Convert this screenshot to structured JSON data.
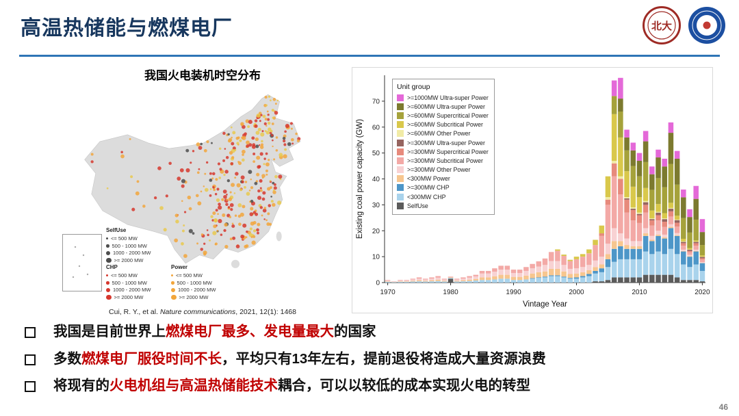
{
  "slide": {
    "title": "高温热储能与燃煤电厂",
    "page_number": "46",
    "accent_color": "#17375E",
    "underline_color": "#2E75B6",
    "highlight_color": "#C00000"
  },
  "logos": {
    "left_name": "peking-university-seal",
    "right_name": "hust-emblem"
  },
  "map_panel": {
    "title": "我国火电装机时空分布",
    "citation_prefix": "Cui, R. Y., et al. ",
    "citation_journal": "Nature communications",
    "citation_suffix": ", 2021, 12(1): 1468",
    "legend": {
      "selfuse_label": "SelfUse",
      "chp_label": "CHP",
      "power_label": "Power",
      "size_labels": [
        "<= 500 MW",
        "500 - 1000 MW",
        "1000 - 2000 MW",
        ">= 2000 MW"
      ],
      "colors": {
        "selfuse": "#4D4D4D",
        "chp": "#D6382E",
        "power": "#F2A63C",
        "power_alt": "#E9C94F"
      }
    }
  },
  "chart_data": {
    "type": "bar",
    "stacked": true,
    "title": "",
    "xlabel": "Vintage Year",
    "ylabel": "Existing coal power capacity (GW)",
    "legend_title": "Unit group",
    "legend_position": "upper-left",
    "grid": false,
    "ylim": [
      0,
      80
    ],
    "yticks": [
      0,
      10,
      20,
      30,
      40,
      50,
      60,
      70
    ],
    "xticks": [
      1970,
      1980,
      1990,
      2000,
      2010,
      2020
    ],
    "x": [
      1970,
      1971,
      1972,
      1973,
      1974,
      1975,
      1976,
      1977,
      1978,
      1979,
      1980,
      1981,
      1982,
      1983,
      1984,
      1985,
      1986,
      1987,
      1988,
      1989,
      1990,
      1991,
      1992,
      1993,
      1994,
      1995,
      1996,
      1997,
      1998,
      1999,
      2000,
      2001,
      2002,
      2003,
      2004,
      2005,
      2006,
      2007,
      2008,
      2009,
      2010,
      2011,
      2012,
      2013,
      2014,
      2015,
      2016,
      2017,
      2018,
      2019,
      2020
    ],
    "series": [
      {
        "name": ">=1000MW Ultra-super Power",
        "color": "#E469D8",
        "values": [
          0,
          0,
          0,
          0,
          0,
          0,
          0,
          0,
          0,
          0,
          0,
          0,
          0,
          0,
          0,
          0,
          0,
          0,
          0,
          0,
          0,
          0,
          0,
          0,
          0,
          0,
          0,
          0,
          0,
          0,
          0,
          0,
          0,
          0,
          0,
          0,
          6,
          8,
          3,
          3,
          3,
          4,
          3,
          3,
          3,
          4,
          3,
          3,
          3,
          5,
          5
        ]
      },
      {
        "name": ">=600MW Ultra-super Power",
        "color": "#7C7A2F",
        "values": [
          0,
          0,
          0,
          0,
          0,
          0,
          0,
          0,
          0,
          0,
          0,
          0,
          0,
          0,
          0,
          0,
          0,
          0,
          0,
          0,
          0,
          0,
          0,
          0,
          0,
          0,
          0,
          0,
          0,
          0,
          0,
          0,
          0,
          0,
          0,
          0,
          0,
          5,
          5,
          6,
          6,
          8,
          6,
          8,
          8,
          12,
          10,
          8,
          6,
          8,
          5
        ]
      },
      {
        "name": ">=600MW Supercritical Power",
        "color": "#A5A23B",
        "values": [
          0,
          0,
          0,
          0,
          0,
          0,
          0,
          0,
          0,
          0,
          0,
          0,
          0,
          0,
          0,
          0,
          0,
          0,
          0,
          0,
          0,
          0,
          0,
          0,
          0,
          0,
          0,
          0,
          0,
          0,
          0,
          0,
          0,
          0,
          0,
          0,
          7,
          10,
          8,
          8,
          8,
          10,
          8,
          10,
          10,
          15,
          12,
          8,
          6,
          8,
          4
        ]
      },
      {
        "name": ">=600MW Subcritical Power",
        "color": "#D9C84B",
        "values": [
          0,
          0,
          0,
          0,
          0,
          0,
          0,
          0,
          0,
          0,
          0,
          0,
          0,
          0,
          0,
          0,
          0,
          0,
          0,
          0,
          0,
          0,
          0,
          0,
          0,
          0,
          0,
          0.5,
          0.5,
          0.5,
          1,
          1,
          1.5,
          2,
          3,
          8,
          18,
          15,
          10,
          8,
          6,
          5,
          3,
          3,
          2,
          2,
          1.5,
          1,
          0.5,
          0.5,
          0.5
        ]
      },
      {
        "name": ">=600MW Other Power",
        "color": "#F1EBA6",
        "values": [
          0,
          0,
          0,
          0,
          0,
          0,
          0,
          0,
          0,
          0,
          0,
          0,
          0,
          0,
          0,
          0,
          0,
          0,
          0,
          0,
          0,
          0,
          0,
          0,
          0,
          0,
          0,
          0,
          0,
          0,
          0,
          0,
          0,
          0,
          0,
          1,
          1,
          1,
          0.5,
          0.5,
          0.5,
          0.5,
          0.3,
          0.3,
          0.3,
          0.3,
          0.2,
          0.2,
          0.1,
          0.1,
          0.1
        ]
      },
      {
        "name": ">=300MW Ultra-super Power",
        "color": "#96645F",
        "values": [
          0,
          0,
          0,
          0,
          0,
          0,
          0,
          0,
          0,
          0,
          0,
          0,
          0,
          0,
          0,
          0,
          0,
          0,
          0,
          0,
          0,
          0,
          0,
          0,
          0,
          0,
          0,
          0,
          0,
          0,
          0,
          0,
          0,
          0,
          0,
          0,
          0,
          0,
          0.5,
          0.5,
          0.5,
          1,
          0.5,
          1,
          1,
          1,
          1,
          0.5,
          0.5,
          0.5,
          0.5
        ]
      },
      {
        "name": ">=300MW Supercritical Power",
        "color": "#E78A7C",
        "values": [
          0,
          0,
          0,
          0,
          0,
          0,
          0,
          0,
          0,
          0,
          0,
          0,
          0,
          0,
          0,
          0,
          0,
          0,
          0,
          0,
          0,
          0,
          0,
          0,
          0,
          0,
          0,
          0,
          0,
          0,
          0,
          0,
          0,
          0,
          1,
          2,
          5,
          6,
          5,
          4,
          3,
          3,
          2,
          2,
          2,
          2,
          1.5,
          1,
          0.5,
          1,
          0.5
        ]
      },
      {
        "name": ">=300MW Subcritical Power",
        "color": "#F3A9A6",
        "values": [
          0.2,
          0.1,
          0.2,
          0.2,
          0.3,
          0.5,
          0.3,
          0.5,
          0.6,
          0.3,
          0.3,
          0.3,
          0.5,
          0.6,
          0.6,
          1,
          1,
          1.3,
          1.5,
          1.5,
          1.3,
          1.3,
          1.5,
          1.7,
          2,
          2.5,
          3.5,
          4,
          3.5,
          3,
          3.5,
          4,
          4.5,
          6,
          8,
          15,
          20,
          15,
          10,
          8,
          7,
          6,
          4,
          4,
          3,
          3,
          2.5,
          1.5,
          1,
          1.5,
          1
        ]
      },
      {
        "name": ">=300MW Other Power",
        "color": "#F8D2D3",
        "values": [
          0.3,
          0.1,
          0.3,
          0.3,
          0.5,
          0.6,
          0.5,
          0.6,
          0.8,
          0.5,
          0,
          0.5,
          0.6,
          0.8,
          1,
          1.5,
          1.5,
          1.8,
          2,
          2,
          1.5,
          1.5,
          1.8,
          2,
          2.2,
          2.5,
          3,
          3,
          2.5,
          2,
          2,
          2,
          2,
          2.5,
          3,
          4,
          5,
          3,
          2.5,
          2,
          2,
          2,
          1.5,
          1.5,
          1,
          1,
          0.8,
          0.5,
          0.5,
          0.5,
          0.3
        ]
      },
      {
        "name": "<300MW Power",
        "color": "#F7C68F",
        "values": [
          0.2,
          0.1,
          0.2,
          0.2,
          0.3,
          0.4,
          0.3,
          0.4,
          0.5,
          0.3,
          0.2,
          0.3,
          0.4,
          0.5,
          0.6,
          1,
          1,
          1.2,
          1.5,
          1.5,
          1.2,
          1.2,
          1.5,
          1.8,
          2,
          2,
          2.5,
          2.5,
          2,
          1.5,
          1.5,
          1.5,
          1.5,
          1.5,
          1.5,
          2,
          3,
          2,
          1.5,
          1,
          1,
          1,
          0.5,
          0.5,
          0.5,
          0.5,
          0.3,
          0.2,
          0.2,
          0.2,
          0.1
        ]
      },
      {
        "name": ">=300MW CHP",
        "color": "#4D96C8",
        "values": [
          0,
          0,
          0,
          0,
          0,
          0,
          0,
          0,
          0,
          0,
          0,
          0,
          0,
          0,
          0,
          0,
          0,
          0,
          0,
          0,
          0,
          0,
          0,
          0.2,
          0.2,
          0.3,
          0.3,
          0.3,
          0.3,
          0.3,
          0.5,
          0.5,
          0.8,
          1,
          1.5,
          3,
          5,
          5,
          4,
          4,
          4,
          6,
          5,
          6,
          6,
          8,
          7,
          5,
          4,
          5,
          3
        ]
      },
      {
        "name": "<300MW CHP",
        "color": "#A9D3EC",
        "values": [
          0.3,
          0.2,
          0.3,
          0.3,
          0.4,
          0.5,
          0.4,
          0.5,
          0.6,
          0.4,
          0.3,
          0.4,
          0.5,
          0.6,
          0.8,
          1,
          1,
          1.2,
          1.5,
          1.5,
          1,
          1,
          1.2,
          1.5,
          1.8,
          2,
          2.5,
          2.5,
          2,
          1.5,
          1.5,
          2,
          2.5,
          3,
          3.5,
          5,
          6,
          7,
          7,
          7,
          7,
          9,
          8,
          9,
          8,
          10,
          9,
          6,
          5,
          6,
          4
        ]
      },
      {
        "name": "SelfUse",
        "color": "#5B5B5B",
        "values": [
          0,
          0,
          0,
          0,
          0,
          0,
          0,
          0,
          0,
          0,
          1.5,
          0,
          0,
          0,
          0,
          0,
          0,
          0,
          0,
          0,
          0,
          0,
          0,
          0,
          0,
          0,
          0,
          0,
          0,
          0,
          0,
          0,
          0,
          0.5,
          0.5,
          1,
          2,
          2,
          2,
          2,
          2,
          3,
          3,
          3,
          3,
          3,
          2,
          1,
          1,
          1,
          0.5
        ]
      }
    ]
  },
  "bullets": [
    {
      "segments": [
        {
          "t": "我国是目前世界上",
          "c": "normal"
        },
        {
          "t": "燃煤电厂最多、发电量最大",
          "c": "highlight"
        },
        {
          "t": "的国家",
          "c": "normal"
        }
      ]
    },
    {
      "segments": [
        {
          "t": "多数",
          "c": "normal"
        },
        {
          "t": "燃煤电厂服役时间不长",
          "c": "highlight"
        },
        {
          "t": "，平均只有13年左右，提前退役将造成大量资源浪费",
          "c": "normal"
        }
      ]
    },
    {
      "segments": [
        {
          "t": "将现有的",
          "c": "normal"
        },
        {
          "t": "火电机组与高温热储能技术",
          "c": "highlight"
        },
        {
          "t": "耦合，可以以较低的成本实现火电的转型",
          "c": "normal"
        }
      ]
    }
  ]
}
